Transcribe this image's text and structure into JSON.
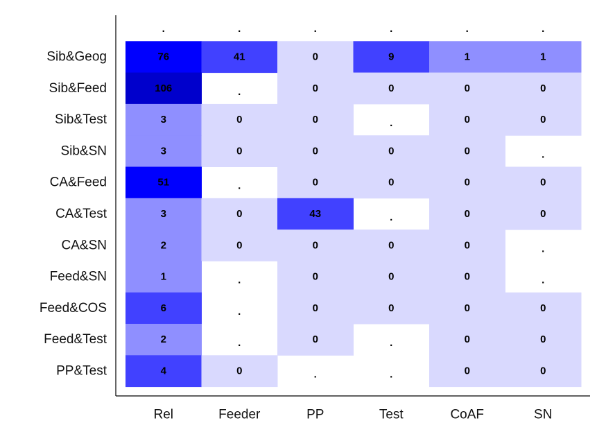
{
  "chart_data": {
    "type": "heatmap",
    "columns": [
      "Rel",
      "Feeder",
      "PP",
      "Test",
      "CoAF",
      "SN"
    ],
    "rows": [
      "",
      "Sib&Geog",
      "Sib&Feed",
      "Sib&Test",
      "Sib&SN",
      "CA&Feed",
      "CA&Test",
      "CA&SN",
      "Feed&SN",
      "Feed&COS",
      "Feed&Test",
      "PP&Test"
    ],
    "values": [
      [
        null,
        null,
        null,
        null,
        null,
        null
      ],
      [
        76,
        41,
        0,
        9,
        1,
        1
      ],
      [
        106,
        null,
        0,
        0,
        0,
        0
      ],
      [
        3,
        0,
        0,
        null,
        0,
        0
      ],
      [
        3,
        0,
        0,
        0,
        0,
        null
      ],
      [
        51,
        null,
        0,
        0,
        0,
        0
      ],
      [
        3,
        0,
        43,
        null,
        0,
        0
      ],
      [
        2,
        0,
        0,
        0,
        0,
        null
      ],
      [
        1,
        null,
        0,
        0,
        0,
        null
      ],
      [
        6,
        null,
        0,
        0,
        0,
        0
      ],
      [
        2,
        null,
        0,
        null,
        0,
        0
      ],
      [
        4,
        0,
        null,
        null,
        0,
        0
      ]
    ],
    "missing_label": ".",
    "colors": {
      "zero": "#d9d9fe",
      "low": "#8f8fff",
      "mid": "#4141ff",
      "high": "#0000fe",
      "max": "#0000cc",
      "missing": "#ffffff"
    }
  }
}
